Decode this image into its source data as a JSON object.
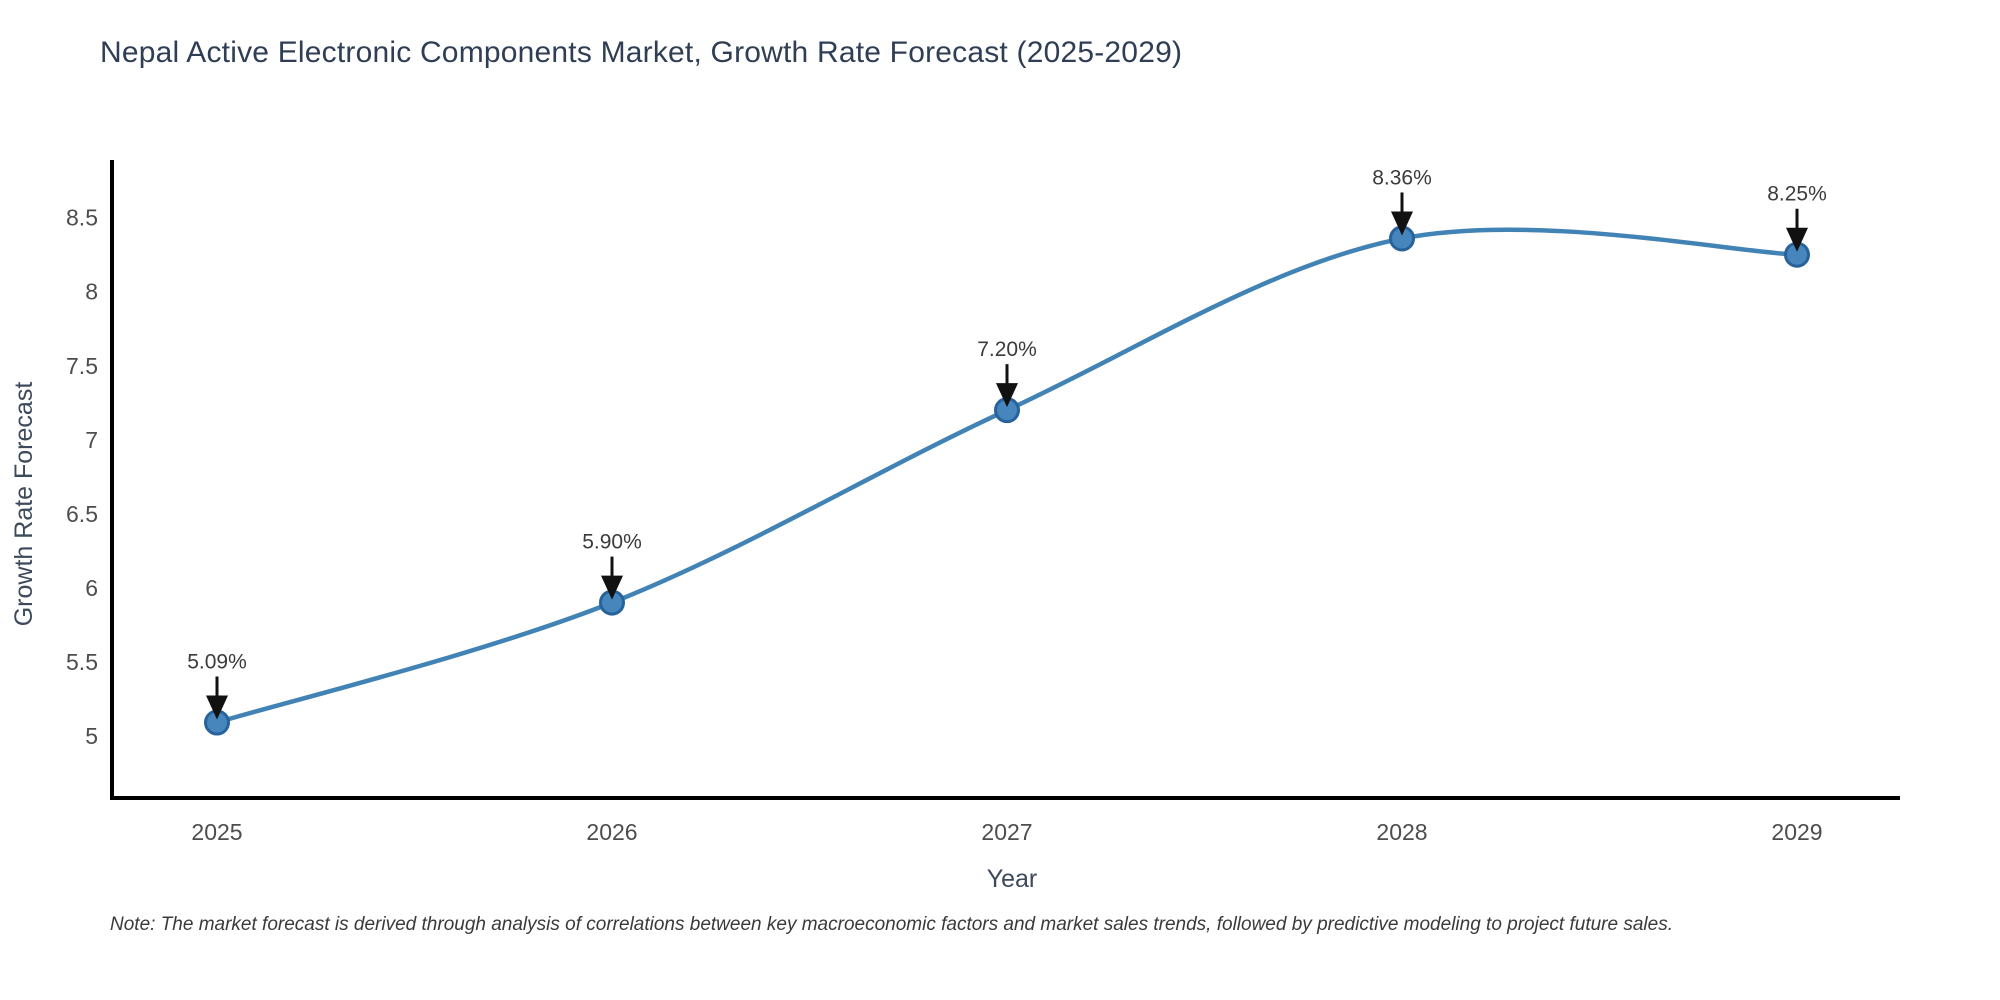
{
  "chart": {
    "note": "Note: The market forecast is derived through analysis of correlations between key macroeconomic factors and market sales trends, followed by predictive modeling to project future sales."
  },
  "chart_data": {
    "type": "line",
    "title": "Nepal Active Electronic Components Market, Growth Rate Forecast (2025-2029)",
    "xlabel": "Year",
    "ylabel": "Growth Rate Forecast",
    "categories": [
      "2025",
      "2026",
      "2027",
      "2028",
      "2029"
    ],
    "values": [
      5.09,
      5.9,
      7.2,
      8.36,
      8.25
    ],
    "point_labels": [
      "5.09%",
      "5.90%",
      "7.20%",
      "8.36%",
      "8.25%"
    ],
    "yticks": [
      5,
      5.5,
      6,
      6.5,
      7,
      7.5,
      8,
      8.5
    ],
    "ytick_labels": [
      "5",
      "5.5",
      "6",
      "6.5",
      "7",
      "7.5",
      "8",
      "8.5"
    ],
    "ylim": [
      4.58,
      8.89
    ],
    "grid": false,
    "legend": "none",
    "line_style": "spline",
    "annotations": "value labels with down arrows above each point",
    "colors": {
      "background": "#ffffff",
      "line": "#4283b6",
      "marker_fill": "#4686bd",
      "marker_stroke": "#27629b",
      "axis_line": "#000000",
      "tick_text": "#4d4d4d",
      "title_text": "#2f3e55",
      "axis_title_text": "#3d4a5c",
      "annotation_text": "#3b3b3b",
      "arrow": "#111111",
      "note_text": "#3a3a3a"
    }
  }
}
